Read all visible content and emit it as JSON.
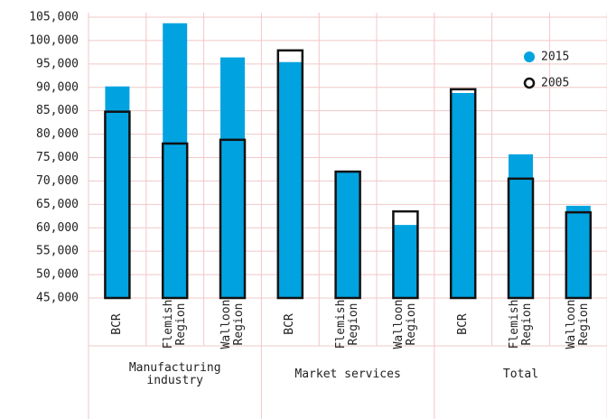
{
  "chart_data": {
    "type": "bar",
    "groups": [
      {
        "name": "Manufacturing industry",
        "categories": [
          "BCR",
          "Flemish Region",
          "Walloon Region"
        ]
      },
      {
        "name": "Market services",
        "categories": [
          "BCR",
          "Flemish Region",
          "Walloon Region"
        ]
      },
      {
        "name": "Total",
        "categories": [
          "BCR",
          "Flemish Region",
          "Walloon Region"
        ]
      }
    ],
    "series": [
      {
        "name": "2015",
        "color": "#00a3e0",
        "values": [
          90200,
          103700,
          96400,
          95400,
          72000,
          60600,
          88800,
          75700,
          64700
        ]
      },
      {
        "name": "2005",
        "color": "#111111",
        "values": [
          84800,
          78000,
          78800,
          97900,
          72000,
          63500,
          89600,
          70500,
          63300
        ]
      }
    ],
    "ylim": [
      45000,
      105000
    ],
    "yticks": [
      {
        "value": 45000,
        "label": "45,000"
      },
      {
        "value": 50000,
        "label": "50,000"
      },
      {
        "value": 55000,
        "label": "55,000"
      },
      {
        "value": 60000,
        "label": "60,000"
      },
      {
        "value": 65000,
        "label": "65,000"
      },
      {
        "value": 70000,
        "label": "70,000"
      },
      {
        "value": 75000,
        "label": "75,000"
      },
      {
        "value": 80000,
        "label": "80,000"
      },
      {
        "value": 85000,
        "label": "85,000"
      },
      {
        "value": 90000,
        "label": "90,000"
      },
      {
        "value": 95000,
        "label": "95,000"
      },
      {
        "value": 100000,
        "label": "100,000"
      },
      {
        "value": 105000,
        "label": "105,000"
      }
    ],
    "grid": true,
    "legend": "upper right"
  }
}
